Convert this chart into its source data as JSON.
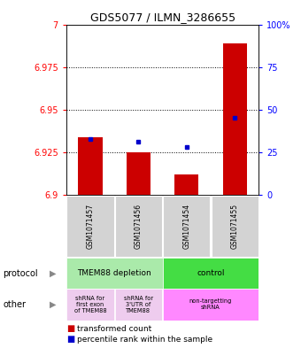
{
  "title": "GDS5077 / ILMN_3286655",
  "samples": [
    "GSM1071457",
    "GSM1071456",
    "GSM1071454",
    "GSM1071455"
  ],
  "red_values": [
    6.934,
    6.925,
    6.912,
    6.989
  ],
  "blue_values": [
    33,
    31,
    28,
    45
  ],
  "ylim_left": [
    6.9,
    7.0
  ],
  "ylim_right": [
    0,
    100
  ],
  "yticks_left": [
    6.9,
    6.925,
    6.95,
    6.975,
    7.0
  ],
  "yticks_right": [
    0,
    25,
    50,
    75,
    100
  ],
  "ytick_labels_left": [
    "6.9",
    "6.925",
    "6.95",
    "6.975",
    "7"
  ],
  "ytick_labels_right": [
    "0",
    "25",
    "50",
    "75",
    "100%"
  ],
  "bar_color": "#cc0000",
  "dot_color": "#0000cc",
  "legend_red": "transformed count",
  "legend_blue": "percentile rank within the sample",
  "bg_color": "#d3d3d3",
  "protocol_left_color": "#aaeaaa",
  "protocol_right_color": "#44dd44",
  "other_left1_color": "#eeccee",
  "other_left2_color": "#eeccee",
  "other_right_color": "#ff88ff"
}
